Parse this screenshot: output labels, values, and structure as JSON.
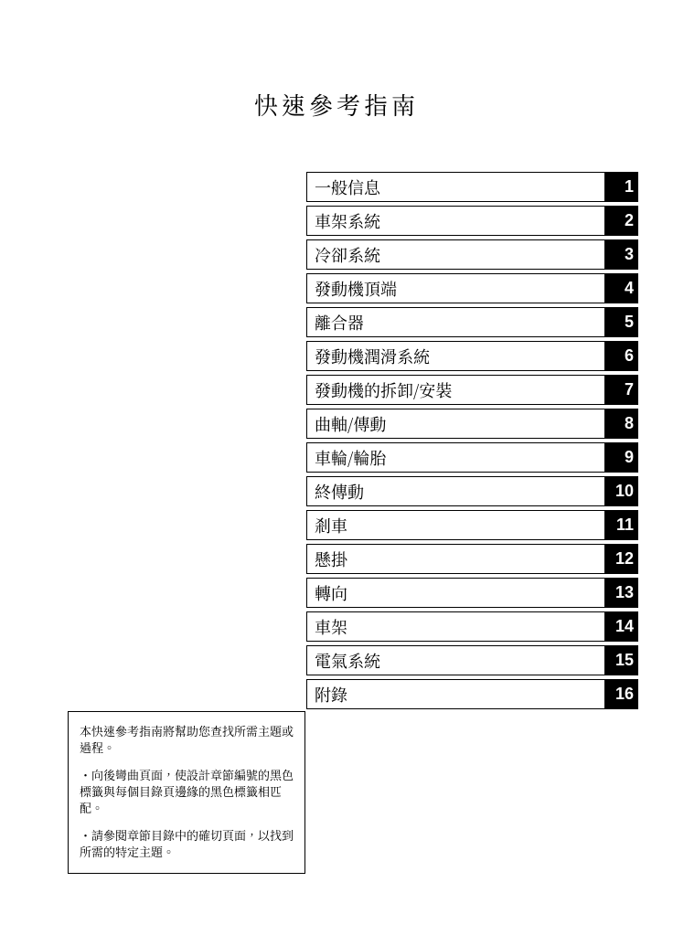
{
  "title": "快速參考指南",
  "toc": [
    {
      "label": "一般信息",
      "num": "1"
    },
    {
      "label": "車架系統",
      "num": "2"
    },
    {
      "label": "冷卻系統",
      "num": "3"
    },
    {
      "label": "發動機頂端",
      "num": "4"
    },
    {
      "label": "離合器",
      "num": "5"
    },
    {
      "label": "發動機潤滑系統",
      "num": "6"
    },
    {
      "label": "發動機的拆卸/安裝",
      "num": "7"
    },
    {
      "label": "曲軸/傳動",
      "num": "8"
    },
    {
      "label": "車輪/輪胎",
      "num": "9"
    },
    {
      "label": "終傳動",
      "num": "10"
    },
    {
      "label": "剎車",
      "num": "11"
    },
    {
      "label": "懸掛",
      "num": "12"
    },
    {
      "label": "轉向",
      "num": "13"
    },
    {
      "label": "車架",
      "num": "14"
    },
    {
      "label": "電氣系統",
      "num": "15"
    },
    {
      "label": "附錄",
      "num": "16"
    }
  ],
  "note": {
    "p1": "本快速參考指南將幫助您查找所需主題或過程。",
    "p2": "・向後彎曲頁面，使設計章節編號的黑色標籤與每個目錄頁邊緣的黑色標籤相匹配。",
    "p3": "・請參閱章節目錄中的確切頁面，以找到所需的特定主題。"
  },
  "style": {
    "page_bg": "#ffffff",
    "text_color": "#000000",
    "tab_bg": "#000000",
    "tab_text": "#ffffff",
    "border_color": "#000000",
    "title_fontsize": 26,
    "toc_fontsize": 18,
    "note_fontsize": 13
  }
}
